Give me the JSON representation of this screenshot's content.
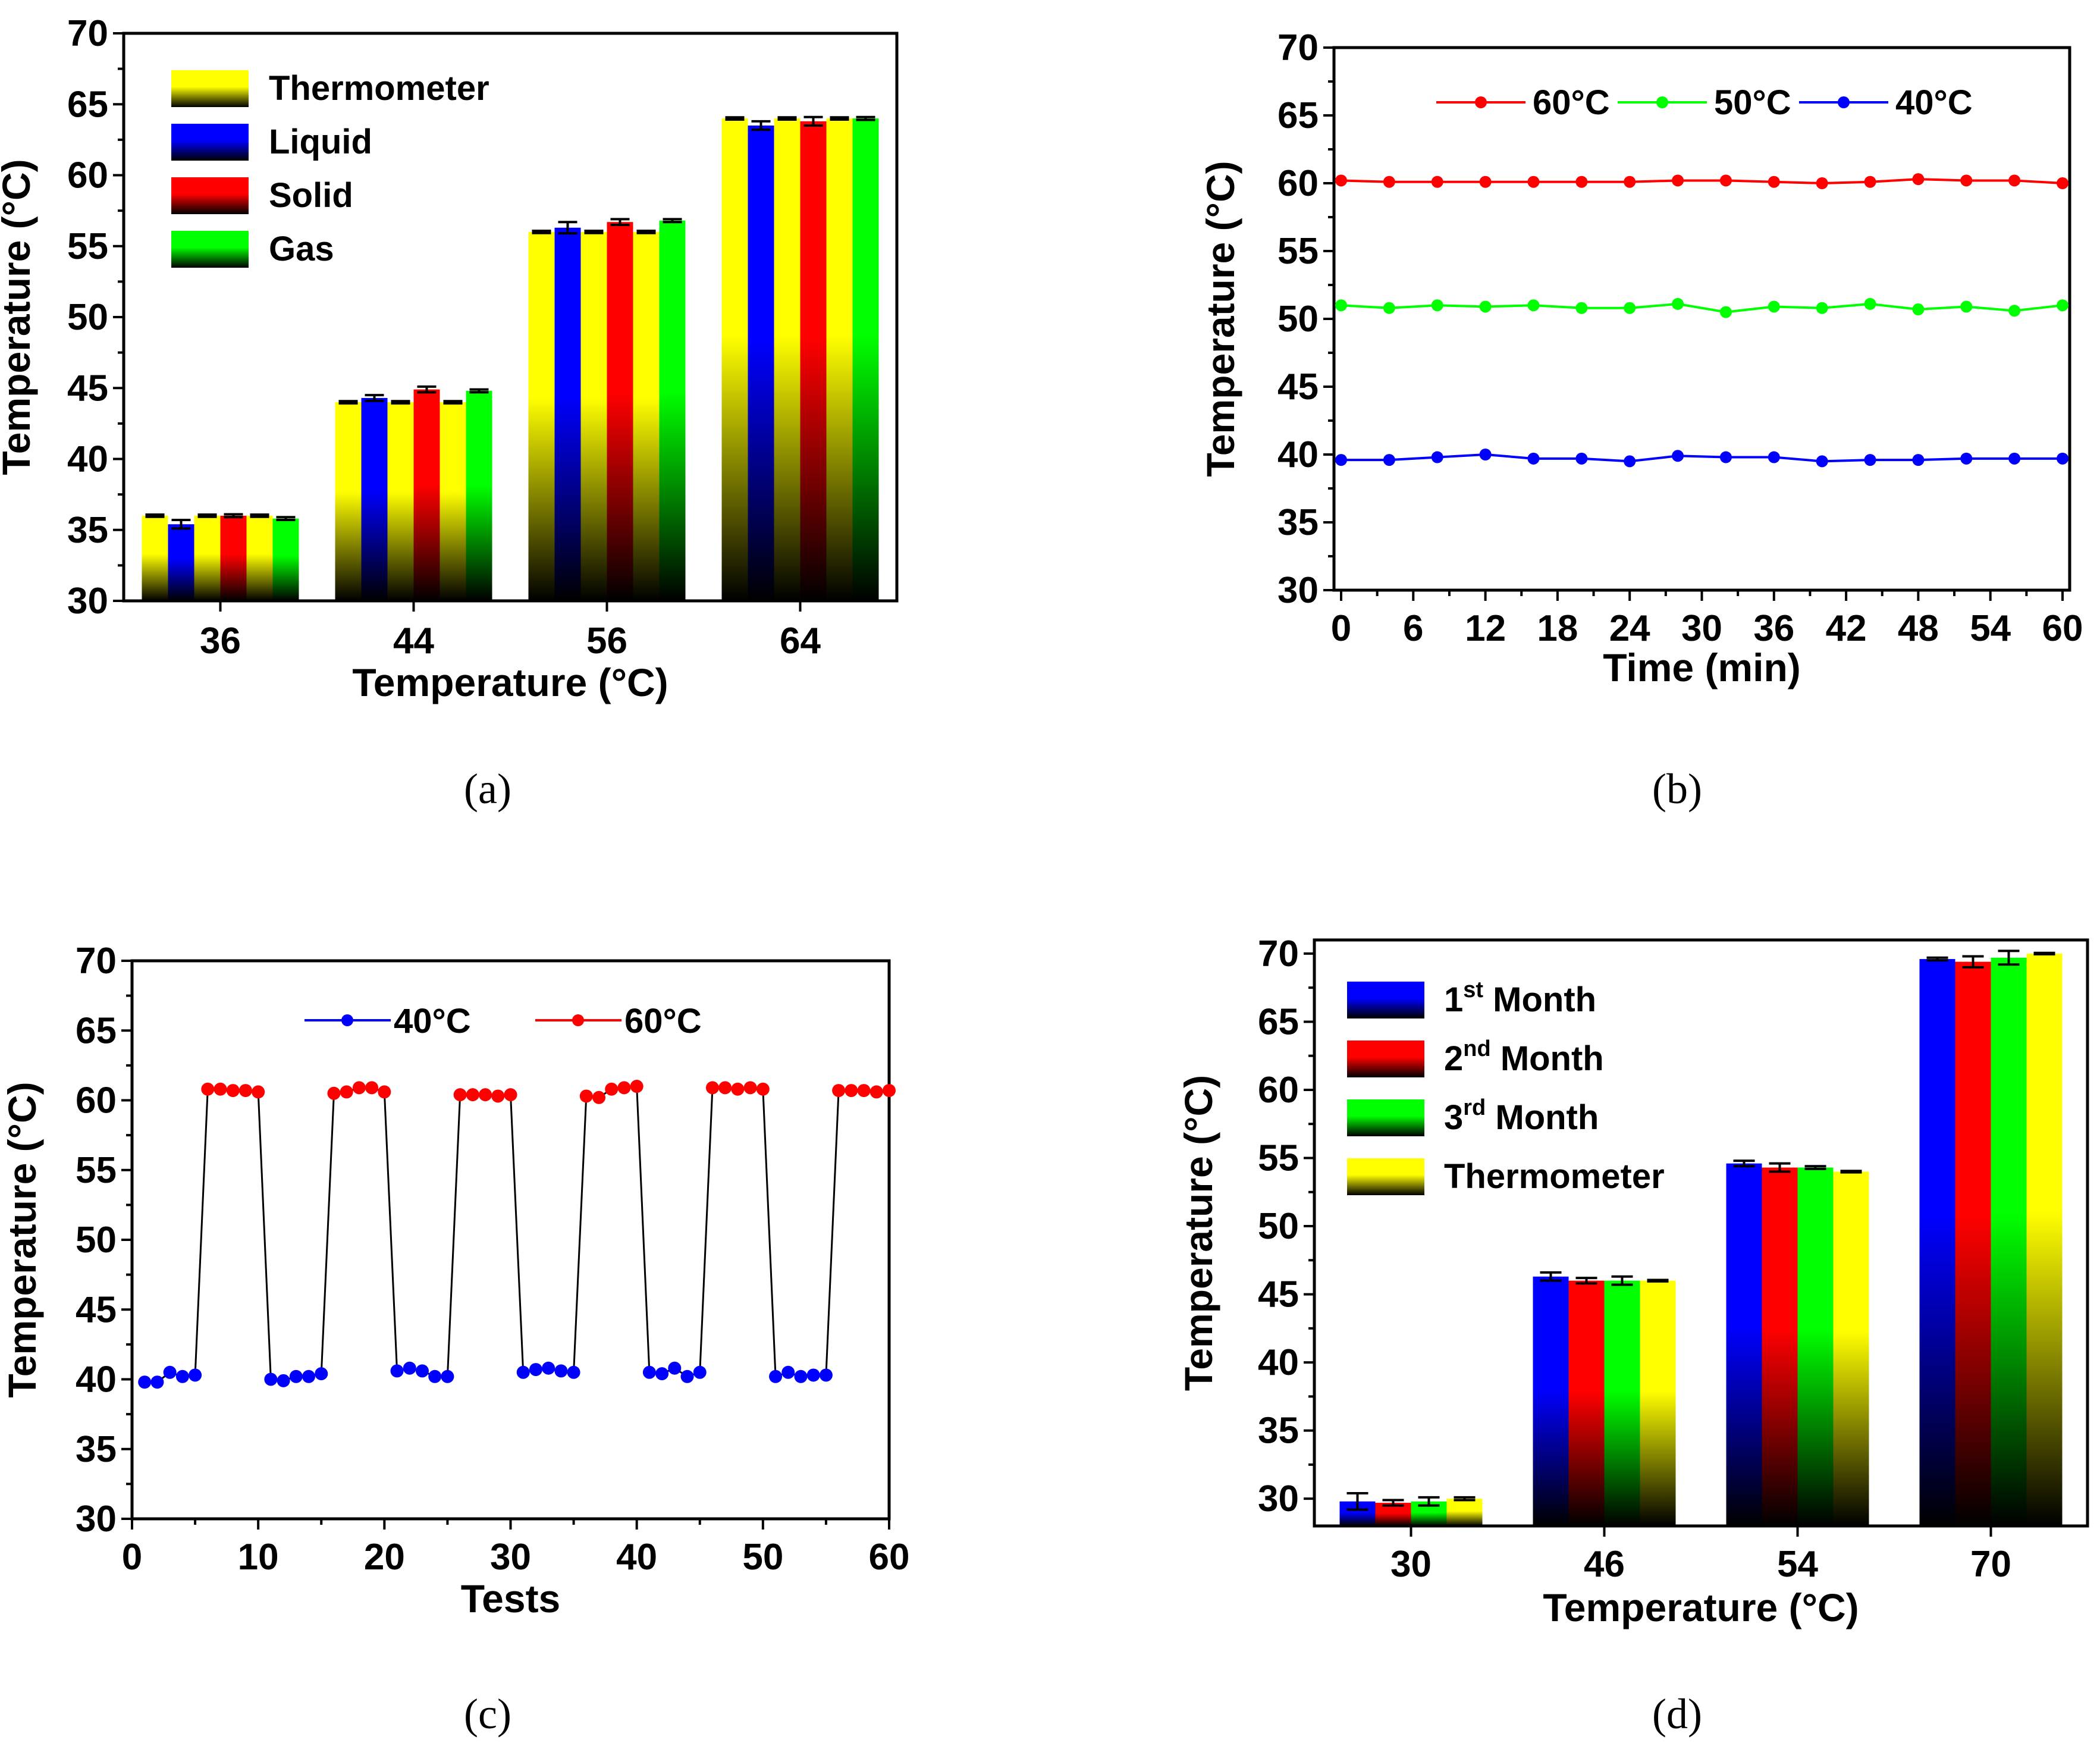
{
  "colors": {
    "yellow": "#ffff00",
    "blue": "#0000ff",
    "red": "#ff0000",
    "green": "#00ff00",
    "dark": "#000000"
  },
  "chart_data": [
    {
      "id": "a",
      "caption": "(a)",
      "type": "bar",
      "xlabel": "Temperature (°C)",
      "ylabel": "Temperature (°C)",
      "ylim": [
        30,
        70
      ],
      "yticks": [
        30,
        35,
        40,
        45,
        50,
        55,
        60,
        65,
        70
      ],
      "categories": [
        "36",
        "44",
        "56",
        "64"
      ],
      "legend_position": "top-left",
      "bar_order": [
        "Thermometer",
        "Liquid",
        "Thermometer",
        "Solid",
        "Thermometer",
        "Gas"
      ],
      "series": [
        {
          "name": "Thermometer",
          "color": "yellow",
          "values": [
            36.0,
            44.0,
            56.0,
            64.0
          ]
        },
        {
          "name": "Liquid",
          "color": "blue",
          "values": [
            35.4,
            44.3,
            56.3,
            63.5
          ],
          "errors": [
            0.3,
            0.2,
            0.4,
            0.3
          ]
        },
        {
          "name": "Solid",
          "color": "red",
          "values": [
            36.0,
            44.9,
            56.7,
            63.8
          ],
          "errors": [
            0.1,
            0.2,
            0.2,
            0.3
          ]
        },
        {
          "name": "Gas",
          "color": "green",
          "values": [
            35.8,
            44.8,
            56.8,
            64.0
          ],
          "errors": [
            0.1,
            0.1,
            0.1,
            0.1
          ]
        }
      ]
    },
    {
      "id": "b",
      "caption": "(b)",
      "type": "line",
      "xlabel": "Time (min)",
      "ylabel": "Temperature (°C)",
      "xlim": [
        0,
        60
      ],
      "xticks": [
        0,
        6,
        12,
        18,
        24,
        30,
        36,
        42,
        48,
        54,
        60
      ],
      "ylim": [
        30,
        70
      ],
      "yticks": [
        30,
        35,
        40,
        45,
        50,
        55,
        60,
        65,
        70
      ],
      "legend_position": "top-center",
      "x": [
        0,
        4,
        8,
        12,
        16,
        20,
        24,
        28,
        32,
        36,
        40,
        44,
        48,
        52,
        56,
        60
      ],
      "series": [
        {
          "name": "60°C",
          "color": "red",
          "values": [
            60.2,
            60.1,
            60.1,
            60.1,
            60.1,
            60.1,
            60.1,
            60.2,
            60.2,
            60.1,
            60.0,
            60.1,
            60.3,
            60.2,
            60.2,
            60.0
          ]
        },
        {
          "name": "50°C",
          "color": "green",
          "values": [
            51.0,
            50.8,
            51.0,
            50.9,
            51.0,
            50.8,
            50.8,
            51.1,
            50.5,
            50.9,
            50.8,
            51.1,
            50.7,
            50.9,
            50.6,
            51.0
          ]
        },
        {
          "name": "40°C",
          "color": "blue",
          "values": [
            39.6,
            39.6,
            39.8,
            40.0,
            39.7,
            39.7,
            39.5,
            39.9,
            39.8,
            39.8,
            39.5,
            39.6,
            39.6,
            39.7,
            39.7,
            39.7
          ]
        }
      ]
    },
    {
      "id": "c",
      "caption": "(c)",
      "type": "line",
      "xlabel": "Tests",
      "ylabel": "Temperature (°C)",
      "xlim": [
        0,
        60
      ],
      "xticks": [
        0,
        10,
        20,
        30,
        40,
        50,
        60
      ],
      "ylim": [
        30,
        70
      ],
      "yticks": [
        30,
        35,
        40,
        45,
        50,
        55,
        60,
        65,
        70
      ],
      "legend_position": "top-center",
      "x": [
        1,
        2,
        3,
        4,
        5,
        6,
        7,
        8,
        9,
        10,
        11,
        12,
        13,
        14,
        15,
        16,
        17,
        18,
        19,
        20,
        21,
        22,
        23,
        24,
        25,
        26,
        27,
        28,
        29,
        30,
        31,
        32,
        33,
        34,
        35,
        36,
        37,
        38,
        39,
        40,
        41,
        42,
        43,
        44,
        45,
        46,
        47,
        48,
        49,
        50,
        51,
        52,
        53,
        54,
        55,
        56,
        57,
        58,
        59,
        60
      ],
      "values": [
        39.8,
        39.8,
        40.5,
        40.2,
        40.3,
        60.8,
        60.8,
        60.7,
        60.7,
        60.6,
        40.0,
        39.9,
        40.2,
        40.2,
        40.4,
        60.5,
        60.6,
        60.9,
        60.9,
        60.6,
        40.6,
        40.8,
        40.6,
        40.2,
        40.2,
        60.4,
        60.4,
        60.4,
        60.3,
        60.4,
        40.5,
        40.7,
        40.8,
        40.6,
        40.5,
        60.3,
        60.2,
        60.8,
        60.9,
        61.0,
        40.5,
        40.4,
        40.8,
        40.2,
        40.5,
        60.9,
        60.9,
        60.8,
        60.9,
        60.8,
        40.2,
        40.5,
        40.2,
        40.3,
        40.3,
        60.7,
        60.7,
        60.7,
        60.6,
        60.7
      ],
      "series": [
        {
          "name": "40°C",
          "color": "blue"
        },
        {
          "name": "60°C",
          "color": "red"
        }
      ]
    },
    {
      "id": "d",
      "caption": "(d)",
      "type": "bar",
      "xlabel": "Temperature (°C)",
      "ylabel": "Temperature (°C)",
      "ylim": [
        28,
        71
      ],
      "yticks": [
        30,
        35,
        40,
        45,
        50,
        55,
        60,
        65,
        70
      ],
      "categories": [
        "30",
        "46",
        "54",
        "70"
      ],
      "legend_position": "top-left",
      "series": [
        {
          "name_base": "1",
          "name_sup": "st",
          "name_rest": " Month",
          "color": "blue",
          "values": [
            29.8,
            46.3,
            54.6,
            69.6
          ],
          "errors": [
            0.6,
            0.3,
            0.2,
            0.1
          ]
        },
        {
          "name_base": "2",
          "name_sup": "nd",
          "name_rest": " Month",
          "color": "red",
          "values": [
            29.7,
            46.0,
            54.3,
            69.4
          ],
          "errors": [
            0.2,
            0.2,
            0.3,
            0.4
          ]
        },
        {
          "name_base": "3",
          "name_sup": "rd",
          "name_rest": " Month",
          "color": "green",
          "values": [
            29.8,
            46.0,
            54.3,
            69.7
          ],
          "errors": [
            0.3,
            0.3,
            0.1,
            0.5
          ]
        },
        {
          "name_base": "Thermometer",
          "name_sup": "",
          "name_rest": "",
          "color": "yellow",
          "values": [
            30.0,
            46.0,
            54.0,
            70.0
          ],
          "errors": [
            0.1,
            0.05,
            0.05,
            0.05
          ]
        }
      ]
    }
  ]
}
